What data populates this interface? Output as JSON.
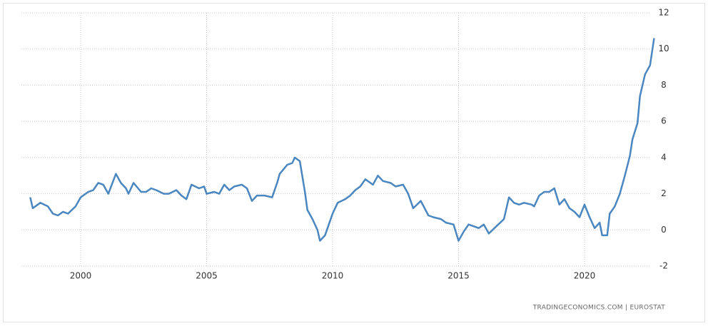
{
  "chart_data": {
    "type": "line",
    "source": "TRADINGECONOMICS.COM  |  EUROSTAT",
    "x": [
      1998.0,
      1998.1,
      1998.4,
      1998.7,
      1998.9,
      1999.1,
      1999.3,
      1999.5,
      1999.8,
      2000.0,
      2000.3,
      2000.5,
      2000.7,
      2000.9,
      2001.1,
      2001.4,
      2001.6,
      2001.8,
      2001.9,
      2002.1,
      2002.4,
      2002.6,
      2002.8,
      2003.0,
      2003.3,
      2003.5,
      2003.8,
      2004.0,
      2004.2,
      2004.4,
      2004.7,
      2004.9,
      2005.0,
      2005.3,
      2005.5,
      2005.7,
      2005.9,
      2006.1,
      2006.4,
      2006.6,
      2006.8,
      2007.0,
      2007.3,
      2007.6,
      2007.8,
      2007.9,
      2008.2,
      2008.4,
      2008.5,
      2008.7,
      2008.9,
      2009.0,
      2009.2,
      2009.4,
      2009.5,
      2009.7,
      2009.9,
      2010.0,
      2010.2,
      2010.5,
      2010.7,
      2010.9,
      2011.1,
      2011.3,
      2011.6,
      2011.8,
      2012.0,
      2012.3,
      2012.5,
      2012.8,
      2013.0,
      2013.2,
      2013.5,
      2013.8,
      2014.0,
      2014.3,
      2014.5,
      2014.8,
      2015.0,
      2015.2,
      2015.4,
      2015.6,
      2015.8,
      2016.0,
      2016.2,
      2016.5,
      2016.8,
      2017.0,
      2017.2,
      2017.4,
      2017.6,
      2017.9,
      2018.0,
      2018.2,
      2018.4,
      2018.6,
      2018.8,
      2019.0,
      2019.2,
      2019.4,
      2019.6,
      2019.8,
      2020.0,
      2020.2,
      2020.4,
      2020.6,
      2020.7,
      2020.9,
      2021.0,
      2021.2,
      2021.4,
      2021.6,
      2021.8,
      2021.9,
      2022.1,
      2022.2,
      2022.4,
      2022.6,
      2022.76
    ],
    "series": [
      {
        "color": "#4a86c0",
        "values": [
          1.8,
          1.2,
          1.5,
          1.3,
          0.9,
          0.8,
          1.0,
          0.9,
          1.3,
          1.8,
          2.1,
          2.2,
          2.6,
          2.5,
          2.0,
          3.1,
          2.6,
          2.3,
          2.0,
          2.6,
          2.1,
          2.1,
          2.3,
          2.2,
          2.0,
          2.0,
          2.2,
          1.9,
          1.7,
          2.5,
          2.3,
          2.4,
          2.0,
          2.1,
          2.0,
          2.5,
          2.2,
          2.4,
          2.5,
          2.3,
          1.6,
          1.9,
          1.9,
          1.8,
          2.6,
          3.1,
          3.6,
          3.7,
          4.0,
          3.8,
          2.1,
          1.1,
          0.6,
          0.0,
          -0.6,
          -0.3,
          0.5,
          0.9,
          1.5,
          1.7,
          1.9,
          2.2,
          2.4,
          2.8,
          2.5,
          3.0,
          2.7,
          2.6,
          2.4,
          2.5,
          2.0,
          1.2,
          1.6,
          0.8,
          0.7,
          0.6,
          0.4,
          0.3,
          -0.6,
          -0.1,
          0.3,
          0.2,
          0.1,
          0.3,
          -0.2,
          0.2,
          0.6,
          1.8,
          1.5,
          1.4,
          1.5,
          1.4,
          1.3,
          1.9,
          2.1,
          2.1,
          2.3,
          1.4,
          1.7,
          1.2,
          1.0,
          0.7,
          1.4,
          0.7,
          0.1,
          0.4,
          -0.3,
          -0.3,
          0.9,
          1.3,
          2.0,
          3.0,
          4.1,
          5.0,
          5.9,
          7.4,
          8.6,
          9.1,
          10.6
        ]
      }
    ],
    "xlim": [
      1997.65,
      2022.86
    ],
    "xticks": [
      2000,
      2005,
      2010,
      2015,
      2020
    ],
    "ylim": [
      -2,
      12
    ],
    "yticks": [
      -2,
      0,
      2,
      4,
      6,
      8,
      10,
      12
    ],
    "grid": true
  }
}
